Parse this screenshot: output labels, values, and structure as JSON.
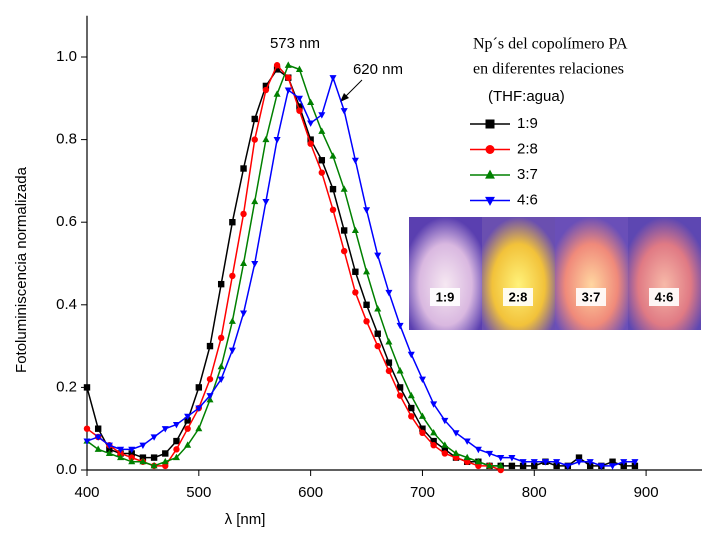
{
  "chart_data": {
    "type": "line",
    "x_label": "λ [nm]",
    "y_label": "Fotoluminiscencia normalizada",
    "annotations": [
      "573 nm",
      "620 nm"
    ],
    "legend_title": [
      "Np´s del copolímero PA",
      "en diferentes relaciones",
      "(THF:agua)"
    ],
    "inset_labels": [
      "1:9",
      "2:8",
      "3:7",
      "4:6"
    ],
    "xlim": [
      400,
      950
    ],
    "xticks": [
      400,
      500,
      600,
      700,
      800,
      900
    ],
    "ylim": [
      0,
      1.1
    ],
    "yticks": [
      {
        "value": 0,
        "label": "0.0"
      },
      0.2,
      0.4,
      0.6,
      0.8,
      {
        "value": 1,
        "label": "1.0"
      }
    ],
    "x": [
      400,
      410,
      420,
      430,
      440,
      450,
      460,
      470,
      480,
      490,
      500,
      510,
      520,
      530,
      540,
      550,
      560,
      570,
      580,
      590,
      600,
      610,
      620,
      630,
      640,
      650,
      660,
      670,
      680,
      690,
      700,
      710,
      720,
      730,
      740,
      750,
      760,
      770,
      780,
      790,
      800,
      810,
      820,
      830,
      840,
      850,
      860,
      870,
      880,
      890
    ],
    "series": [
      {
        "name": "1:9",
        "color": "#000000",
        "marker": "square",
        "values": [
          0.2,
          0.1,
          0.05,
          0.04,
          0.04,
          0.03,
          0.03,
          0.04,
          0.07,
          0.12,
          0.2,
          0.3,
          0.45,
          0.6,
          0.73,
          0.85,
          0.93,
          0.97,
          0.95,
          0.88,
          0.8,
          0.75,
          0.68,
          0.58,
          0.48,
          0.4,
          0.33,
          0.26,
          0.2,
          0.15,
          0.1,
          0.07,
          0.05,
          0.03,
          0.02,
          0.02,
          0.01,
          0.01,
          0.01,
          0.01,
          0.01,
          0.02,
          0.01,
          0.01,
          0.03,
          0.01,
          0.01,
          0.02,
          0.01,
          0.01
        ]
      },
      {
        "name": "2:8",
        "color": "#ff0000",
        "marker": "circle",
        "values": [
          0.1,
          0.08,
          0.06,
          0.04,
          0.03,
          0.02,
          0.01,
          0.01,
          0.05,
          0.1,
          0.15,
          0.22,
          0.32,
          0.47,
          0.62,
          0.8,
          0.92,
          0.98,
          0.95,
          0.87,
          0.79,
          0.72,
          0.63,
          0.53,
          0.43,
          0.36,
          0.3,
          0.24,
          0.18,
          0.13,
          0.09,
          0.06,
          0.04,
          0.03,
          0.02,
          0.01,
          0.01,
          0,
          null,
          null,
          null,
          null,
          null,
          null,
          null,
          null,
          null,
          null,
          null,
          null
        ]
      },
      {
        "name": "3:7",
        "color": "#008000",
        "marker": "triangle-up",
        "values": [
          0.07,
          0.05,
          0.04,
          0.03,
          0.02,
          0.02,
          0.01,
          0.02,
          0.03,
          0.06,
          0.1,
          0.17,
          0.25,
          0.36,
          0.5,
          0.65,
          0.8,
          0.91,
          0.98,
          0.97,
          0.89,
          0.82,
          0.76,
          0.68,
          0.58,
          0.48,
          0.39,
          0.31,
          0.24,
          0.18,
          0.13,
          0.09,
          0.06,
          0.04,
          0.03,
          0.02,
          0.01,
          0.01,
          null,
          null,
          null,
          null,
          null,
          null,
          null,
          null,
          null,
          null,
          null,
          null
        ]
      },
      {
        "name": "4:6",
        "color": "#0000ff",
        "marker": "triangle-down",
        "values": [
          0.07,
          0.08,
          0.06,
          0.05,
          0.05,
          0.06,
          0.08,
          0.1,
          0.11,
          0.13,
          0.15,
          0.18,
          0.22,
          0.29,
          0.38,
          0.5,
          0.65,
          0.8,
          0.92,
          0.9,
          0.84,
          0.86,
          0.95,
          0.87,
          0.75,
          0.63,
          0.52,
          0.43,
          0.35,
          0.28,
          0.22,
          0.16,
          0.12,
          0.09,
          0.07,
          0.05,
          0.04,
          0.03,
          0.03,
          0.02,
          0.02,
          0.02,
          0.02,
          0.01,
          0.02,
          0.02,
          0.01,
          0.01,
          0.02,
          0.02
        ]
      }
    ]
  }
}
